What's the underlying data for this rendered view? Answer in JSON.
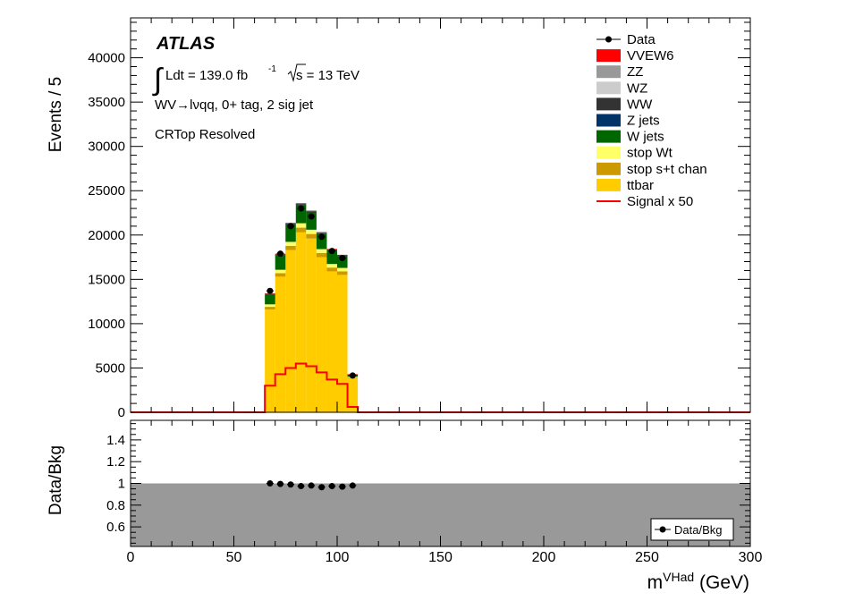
{
  "chart_data": [
    {
      "type": "bar",
      "stacked": true,
      "x_bin_width": 5,
      "xlim": [
        0,
        300
      ],
      "ylim": [
        0,
        44500
      ],
      "ylabel": "Events / 5",
      "grid": false,
      "legend_position": "top-right",
      "labels": {
        "atlas": "ATLAS",
        "lumi": "Ldt = 139.0 fb",
        "lumi_sup": "-1",
        "energy": "s = 13 TeV",
        "channel": "WV→lνqq, 0+ tag, 2 sig jet",
        "region": "CRTop Resolved"
      },
      "y_ticks": [
        "0",
        "5000",
        "10000",
        "15000",
        "20000",
        "25000",
        "30000",
        "35000",
        "40000"
      ],
      "y_tick_values": [
        0,
        5000,
        10000,
        15000,
        20000,
        25000,
        30000,
        35000,
        40000
      ],
      "bin_edges": [
        65,
        70,
        75,
        80,
        85,
        90,
        95,
        100,
        105,
        110
      ],
      "series": [
        {
          "name": "ttbar",
          "color": "#ffcc00",
          "values": [
            11600,
            15300,
            18300,
            20300,
            19600,
            17500,
            15900,
            15500,
            3800
          ]
        },
        {
          "name": "stop s+t chan",
          "color": "#cc9900",
          "values": [
            300,
            400,
            480,
            530,
            520,
            470,
            430,
            410,
            100
          ]
        },
        {
          "name": "stop Wt",
          "color": "#ffff66",
          "values": [
            280,
            380,
            450,
            500,
            480,
            440,
            400,
            380,
            100
          ]
        },
        {
          "name": "W jets",
          "color": "#006600",
          "values": [
            1100,
            1600,
            1900,
            2000,
            1900,
            1700,
            1500,
            1300,
            250
          ]
        },
        {
          "name": "Z jets",
          "color": "#003366",
          "values": [
            60,
            80,
            95,
            100,
            95,
            85,
            75,
            70,
            20
          ]
        },
        {
          "name": "WW",
          "color": "#333333",
          "values": [
            60,
            90,
            110,
            120,
            115,
            100,
            90,
            80,
            20
          ]
        },
        {
          "name": "WZ",
          "color": "#cccccc",
          "values": [
            15,
            20,
            25,
            28,
            26,
            22,
            20,
            18,
            5
          ]
        },
        {
          "name": "ZZ",
          "color": "#999999",
          "values": [
            5,
            7,
            8,
            9,
            8,
            7,
            6,
            6,
            2
          ]
        },
        {
          "name": "VVEW6",
          "color": "#ff0000",
          "values": [
            5,
            6,
            7,
            8,
            7,
            6,
            6,
            5,
            1
          ]
        }
      ],
      "data": {
        "name": "Data",
        "x": [
          67.5,
          72.5,
          77.5,
          82.5,
          87.5,
          92.5,
          97.5,
          102.5,
          107.5
        ],
        "y": [
          13700,
          17900,
          21000,
          23000,
          22100,
          19800,
          18200,
          17400,
          4150
        ]
      },
      "signal": {
        "name": "Signal x 50",
        "color": "#ff0000",
        "values": [
          3000,
          4300,
          5000,
          5500,
          5200,
          4500,
          3700,
          3200,
          600
        ]
      }
    },
    {
      "type": "scatter",
      "ylabel": "Data/Bkg",
      "xlabel": "m",
      "xlabel_sup": "VHad",
      "xlabel_unit": " (GeV)",
      "xlim": [
        0,
        300
      ],
      "ylim": [
        0.42,
        1.58
      ],
      "y_ticks": [
        "0.6",
        "0.8",
        "1",
        "1.2",
        "1.4"
      ],
      "y_tick_values": [
        0.6,
        0.8,
        1.0,
        1.2,
        1.4
      ],
      "x_ticks": [
        "0",
        "50",
        "100",
        "150",
        "200",
        "250",
        "300"
      ],
      "x_tick_values": [
        0,
        50,
        100,
        150,
        200,
        250,
        300
      ],
      "band_fill": "#999999",
      "band_range": [
        0.42,
        1.0
      ],
      "series": [
        {
          "name": "Data/Bkg",
          "x": [
            67.5,
            72.5,
            77.5,
            82.5,
            87.5,
            92.5,
            97.5,
            102.5,
            107.5
          ],
          "y": [
            1.0,
            0.995,
            0.99,
            0.975,
            0.98,
            0.965,
            0.975,
            0.97,
            0.98
          ]
        }
      ]
    }
  ],
  "legend": [
    {
      "label": "Data",
      "kind": "marker",
      "color": "#000000"
    },
    {
      "label": "VVEW6",
      "kind": "box",
      "color": "#ff0000"
    },
    {
      "label": "ZZ",
      "kind": "box",
      "color": "#999999"
    },
    {
      "label": "WZ",
      "kind": "box",
      "color": "#cccccc"
    },
    {
      "label": "WW",
      "kind": "box",
      "color": "#333333"
    },
    {
      "label": "Z jets",
      "kind": "box",
      "color": "#003366"
    },
    {
      "label": "W jets",
      "kind": "box",
      "color": "#006600"
    },
    {
      "label": "stop Wt",
      "kind": "box",
      "color": "#ffff66"
    },
    {
      "label": "stop s+t chan",
      "kind": "box",
      "color": "#cc9900"
    },
    {
      "label": "ttbar",
      "kind": "box",
      "color": "#ffcc00"
    },
    {
      "label": "Signal x 50",
      "kind": "line",
      "color": "#ff0000"
    }
  ],
  "ratio_legend": "Data/Bkg"
}
